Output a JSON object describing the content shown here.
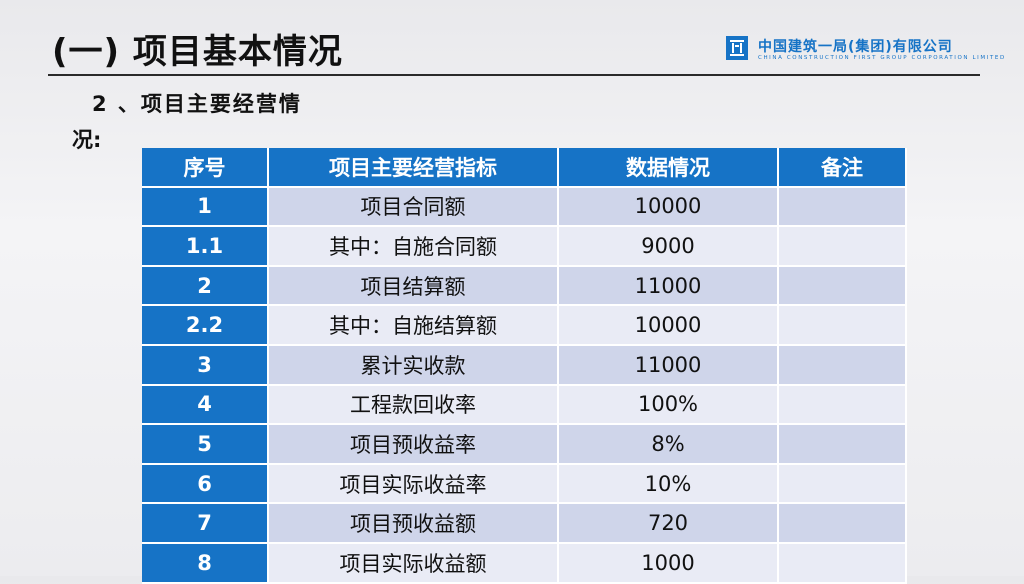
{
  "header": {
    "title": "(一) 项目基本情况",
    "logo_name": "中国建筑一局(集团)有限公司",
    "logo_en": "CHINA CONSTRUCTION FIRST GROUP CORPORATION LIMITED",
    "accent": "#1673c6"
  },
  "section": {
    "subtitle_line1": "2 、项目主要经营情",
    "subtitle_line2": "况:"
  },
  "table": {
    "headers": [
      "序号",
      "项目主要经营指标",
      "数据情况",
      "备注"
    ],
    "rows": [
      {
        "no": "1",
        "item": "项目合同额",
        "value": "10000",
        "note": ""
      },
      {
        "no": "1.1",
        "item": "其中：自施合同额",
        "value": "9000",
        "note": ""
      },
      {
        "no": "2",
        "item": "项目结算额",
        "value": "11000",
        "note": ""
      },
      {
        "no": "2.2",
        "item": "其中：自施结算额",
        "value": "10000",
        "note": ""
      },
      {
        "no": "3",
        "item": "累计实收款",
        "value": "11000",
        "note": ""
      },
      {
        "no": "4",
        "item": "工程款回收率",
        "value": "100%",
        "note": ""
      },
      {
        "no": "5",
        "item": "项目预收益率",
        "value": "8%",
        "note": ""
      },
      {
        "no": "6",
        "item": "项目实际收益率",
        "value": "10%",
        "note": ""
      },
      {
        "no": "7",
        "item": "项目预收益额",
        "value": "720",
        "note": ""
      },
      {
        "no": "8",
        "item": "项目实际收益额",
        "value": "1000",
        "note": ""
      }
    ]
  }
}
